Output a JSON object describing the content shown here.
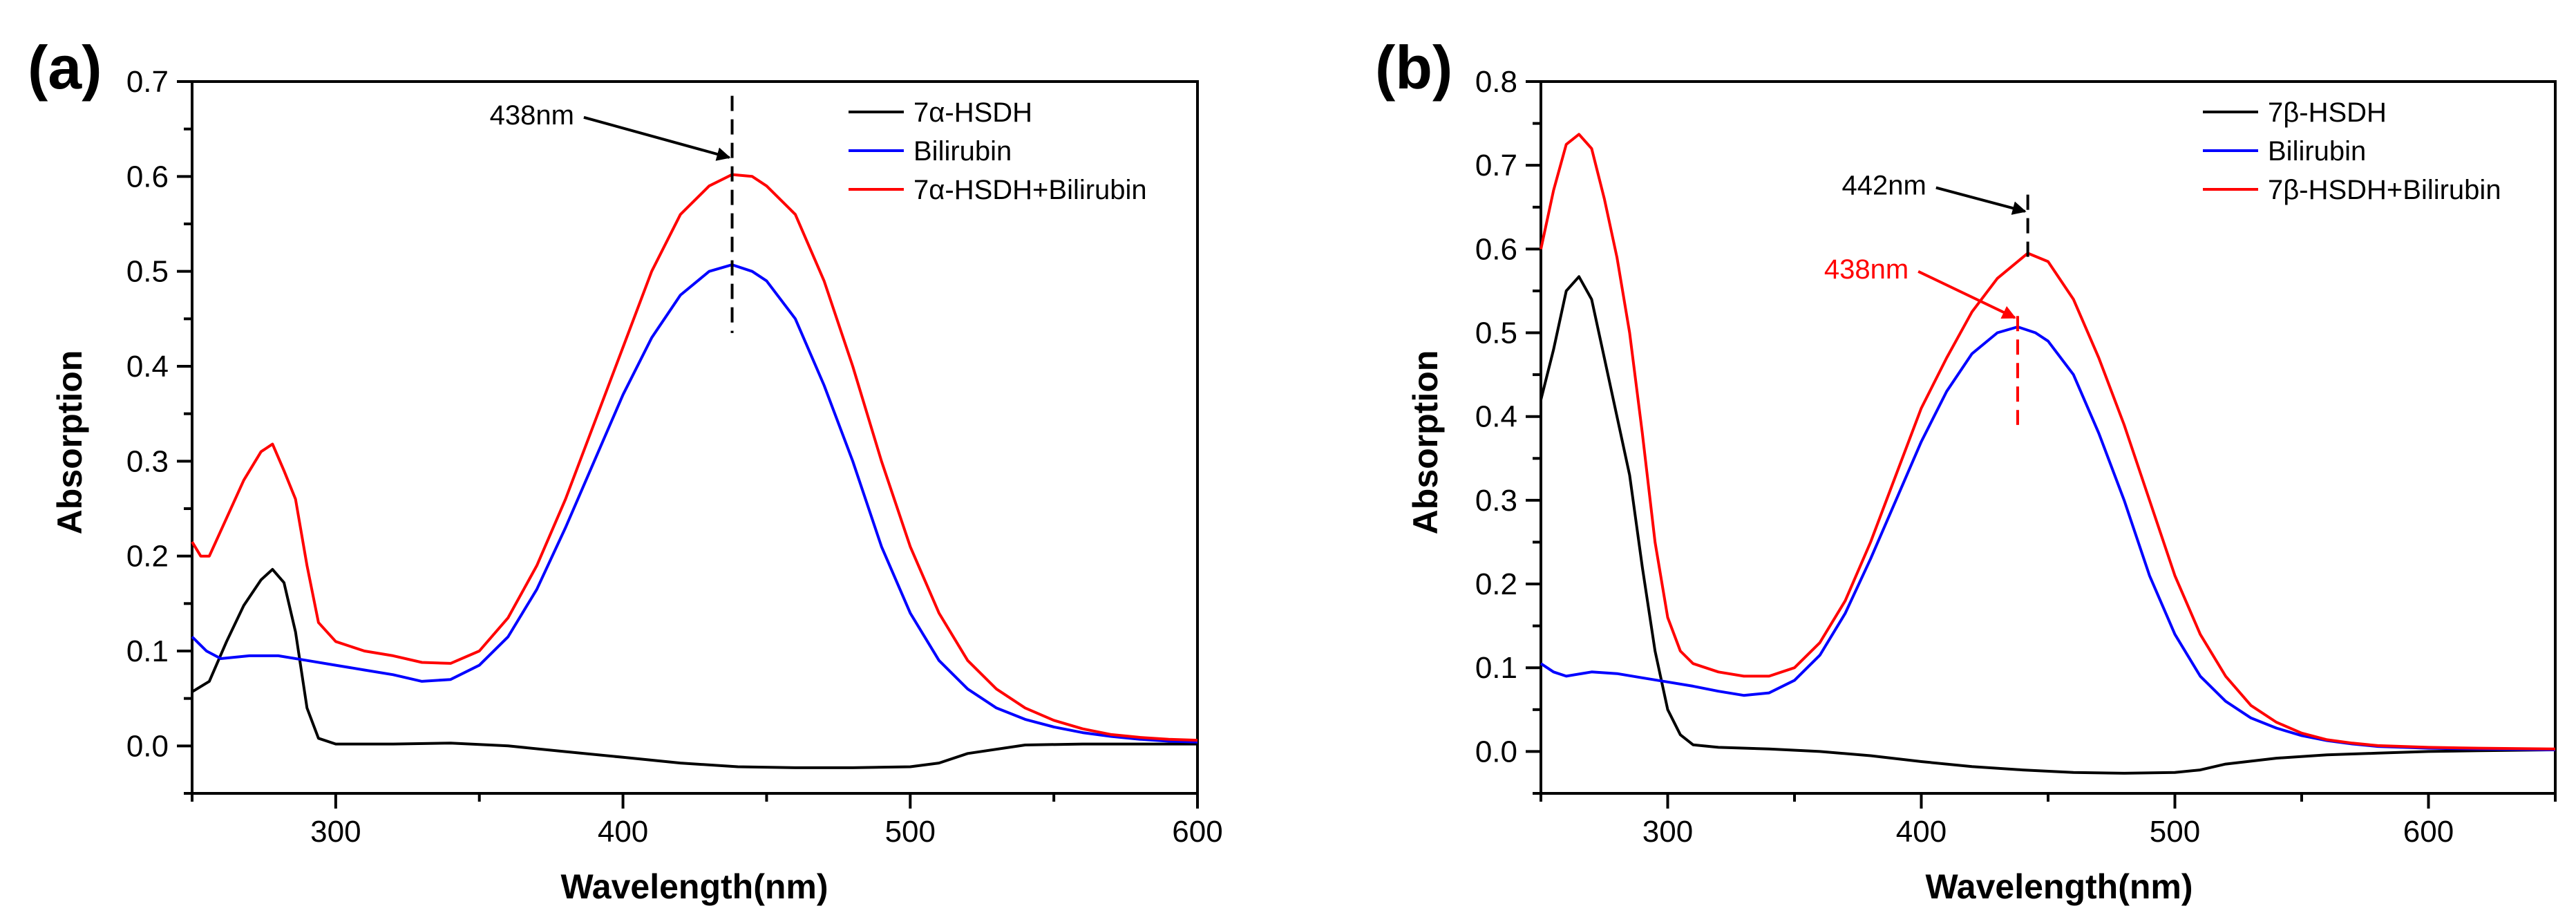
{
  "chart_data": [
    {
      "type": "line",
      "panel_label": "(a)",
      "xlabel": "Wavelength(nm)",
      "ylabel": "Absorption",
      "xlim": [
        250,
        600
      ],
      "ylim": [
        -0.05,
        0.7
      ],
      "xticks": [
        300,
        400,
        500,
        600
      ],
      "yticks": [
        0.0,
        0.1,
        0.2,
        0.3,
        0.4,
        0.5,
        0.6,
        0.7
      ],
      "legend": "top-right",
      "series": [
        {
          "name": "7α-HSDH",
          "color": "#000000",
          "x": [
            250,
            256,
            262,
            268,
            274,
            278,
            282,
            286,
            290,
            294,
            300,
            310,
            320,
            340,
            360,
            380,
            400,
            420,
            440,
            460,
            480,
            500,
            510,
            520,
            540,
            560,
            580,
            600
          ],
          "y": [
            0.057,
            0.068,
            0.11,
            0.148,
            0.175,
            0.186,
            0.172,
            0.12,
            0.04,
            0.008,
            0.002,
            0.002,
            0.002,
            0.003,
            0.0,
            -0.006,
            -0.012,
            -0.018,
            -0.022,
            -0.023,
            -0.023,
            -0.022,
            -0.018,
            -0.008,
            0.001,
            0.002,
            0.002,
            0.002
          ]
        },
        {
          "name": "Bilirubin",
          "color": "#0000ff",
          "x": [
            250,
            255,
            260,
            270,
            280,
            290,
            300,
            310,
            320,
            330,
            340,
            350,
            360,
            370,
            380,
            390,
            400,
            410,
            420,
            430,
            438,
            445,
            450,
            460,
            470,
            480,
            490,
            500,
            510,
            520,
            530,
            540,
            550,
            560,
            570,
            580,
            590,
            600
          ],
          "y": [
            0.115,
            0.1,
            0.092,
            0.095,
            0.095,
            0.09,
            0.085,
            0.08,
            0.075,
            0.068,
            0.07,
            0.085,
            0.115,
            0.165,
            0.23,
            0.3,
            0.37,
            0.43,
            0.475,
            0.5,
            0.507,
            0.5,
            0.49,
            0.45,
            0.38,
            0.3,
            0.21,
            0.14,
            0.09,
            0.06,
            0.04,
            0.028,
            0.02,
            0.014,
            0.01,
            0.007,
            0.005,
            0.004
          ]
        },
        {
          "name": "7α-HSDH+Bilirubin",
          "color": "#ff0000",
          "x": [
            250,
            253,
            256,
            262,
            268,
            274,
            278,
            282,
            286,
            290,
            294,
            300,
            310,
            320,
            330,
            340,
            350,
            360,
            370,
            380,
            390,
            400,
            410,
            420,
            430,
            438,
            445,
            450,
            460,
            470,
            480,
            490,
            500,
            510,
            520,
            530,
            540,
            550,
            560,
            570,
            580,
            590,
            600
          ],
          "y": [
            0.215,
            0.2,
            0.2,
            0.24,
            0.28,
            0.31,
            0.318,
            0.29,
            0.26,
            0.19,
            0.13,
            0.11,
            0.1,
            0.095,
            0.088,
            0.087,
            0.1,
            0.135,
            0.19,
            0.26,
            0.34,
            0.42,
            0.5,
            0.56,
            0.59,
            0.602,
            0.6,
            0.59,
            0.56,
            0.49,
            0.4,
            0.3,
            0.21,
            0.14,
            0.09,
            0.06,
            0.04,
            0.027,
            0.018,
            0.012,
            0.009,
            0.007,
            0.006
          ]
        }
      ],
      "annotations": [
        {
          "text": "438nm",
          "x": 438,
          "color": "#000000",
          "line_from": 0.435,
          "line_to": 0.685,
          "arrow_tip": [
            438,
            0.62
          ],
          "text_pos": [
            383,
            0.655
          ]
        }
      ]
    },
    {
      "type": "line",
      "panel_label": "(b)",
      "xlabel": "Wavelength(nm)",
      "ylabel": "Absorption",
      "xlim": [
        250,
        650
      ],
      "ylim": [
        -0.05,
        0.8
      ],
      "xticks": [
        300,
        400,
        500,
        600
      ],
      "yticks": [
        0.0,
        0.1,
        0.2,
        0.3,
        0.4,
        0.5,
        0.6,
        0.7,
        0.8
      ],
      "legend": "top-right",
      "series": [
        {
          "name": "7β-HSDH",
          "color": "#000000",
          "x": [
            250,
            255,
            260,
            265,
            270,
            275,
            280,
            285,
            290,
            295,
            300,
            305,
            310,
            320,
            340,
            360,
            380,
            400,
            420,
            440,
            460,
            480,
            500,
            510,
            520,
            540,
            560,
            580,
            600,
            620,
            650
          ],
          "y": [
            0.42,
            0.48,
            0.55,
            0.567,
            0.54,
            0.47,
            0.4,
            0.33,
            0.22,
            0.12,
            0.05,
            0.02,
            0.008,
            0.005,
            0.003,
            0.0,
            -0.005,
            -0.012,
            -0.018,
            -0.022,
            -0.025,
            -0.026,
            -0.025,
            -0.022,
            -0.015,
            -0.008,
            -0.004,
            -0.002,
            0.0,
            0.001,
            0.002
          ]
        },
        {
          "name": "Bilirubin",
          "color": "#0000ff",
          "x": [
            250,
            255,
            260,
            270,
            280,
            290,
            300,
            310,
            320,
            330,
            340,
            350,
            360,
            370,
            380,
            390,
            400,
            410,
            420,
            430,
            438,
            445,
            450,
            460,
            470,
            480,
            490,
            500,
            510,
            520,
            530,
            540,
            550,
            560,
            570,
            580,
            600,
            620,
            650
          ],
          "y": [
            0.105,
            0.095,
            0.09,
            0.095,
            0.093,
            0.088,
            0.083,
            0.078,
            0.072,
            0.067,
            0.07,
            0.085,
            0.115,
            0.165,
            0.23,
            0.3,
            0.37,
            0.43,
            0.475,
            0.5,
            0.507,
            0.5,
            0.49,
            0.45,
            0.38,
            0.3,
            0.21,
            0.14,
            0.09,
            0.06,
            0.04,
            0.028,
            0.019,
            0.013,
            0.009,
            0.006,
            0.004,
            0.003,
            0.002
          ]
        },
        {
          "name": "7β-HSDH+Bilirubin",
          "color": "#ff0000",
          "x": [
            250,
            255,
            260,
            265,
            270,
            275,
            280,
            285,
            290,
            295,
            300,
            305,
            310,
            320,
            330,
            340,
            350,
            360,
            370,
            380,
            390,
            400,
            410,
            420,
            430,
            442,
            450,
            460,
            470,
            480,
            490,
            500,
            510,
            520,
            530,
            540,
            550,
            560,
            570,
            580,
            600,
            620,
            650
          ],
          "y": [
            0.6,
            0.67,
            0.725,
            0.737,
            0.72,
            0.66,
            0.59,
            0.5,
            0.38,
            0.25,
            0.16,
            0.12,
            0.105,
            0.095,
            0.09,
            0.09,
            0.1,
            0.13,
            0.18,
            0.25,
            0.33,
            0.41,
            0.47,
            0.525,
            0.565,
            0.595,
            0.585,
            0.54,
            0.47,
            0.39,
            0.3,
            0.21,
            0.14,
            0.09,
            0.055,
            0.035,
            0.022,
            0.014,
            0.01,
            0.007,
            0.005,
            0.004,
            0.003
          ]
        }
      ],
      "annotations": [
        {
          "text": "442nm",
          "x": 442,
          "color": "#000000",
          "line_from": 0.59,
          "line_to": 0.665,
          "arrow_tip": [
            442,
            0.645
          ],
          "text_pos": [
            402,
            0.665
          ]
        },
        {
          "text": "438nm",
          "x": 438,
          "color": "#ff0000",
          "line_from": 0.39,
          "line_to": 0.52,
          "arrow_tip": [
            438,
            0.518
          ],
          "text_pos": [
            395,
            0.565
          ]
        }
      ]
    }
  ]
}
